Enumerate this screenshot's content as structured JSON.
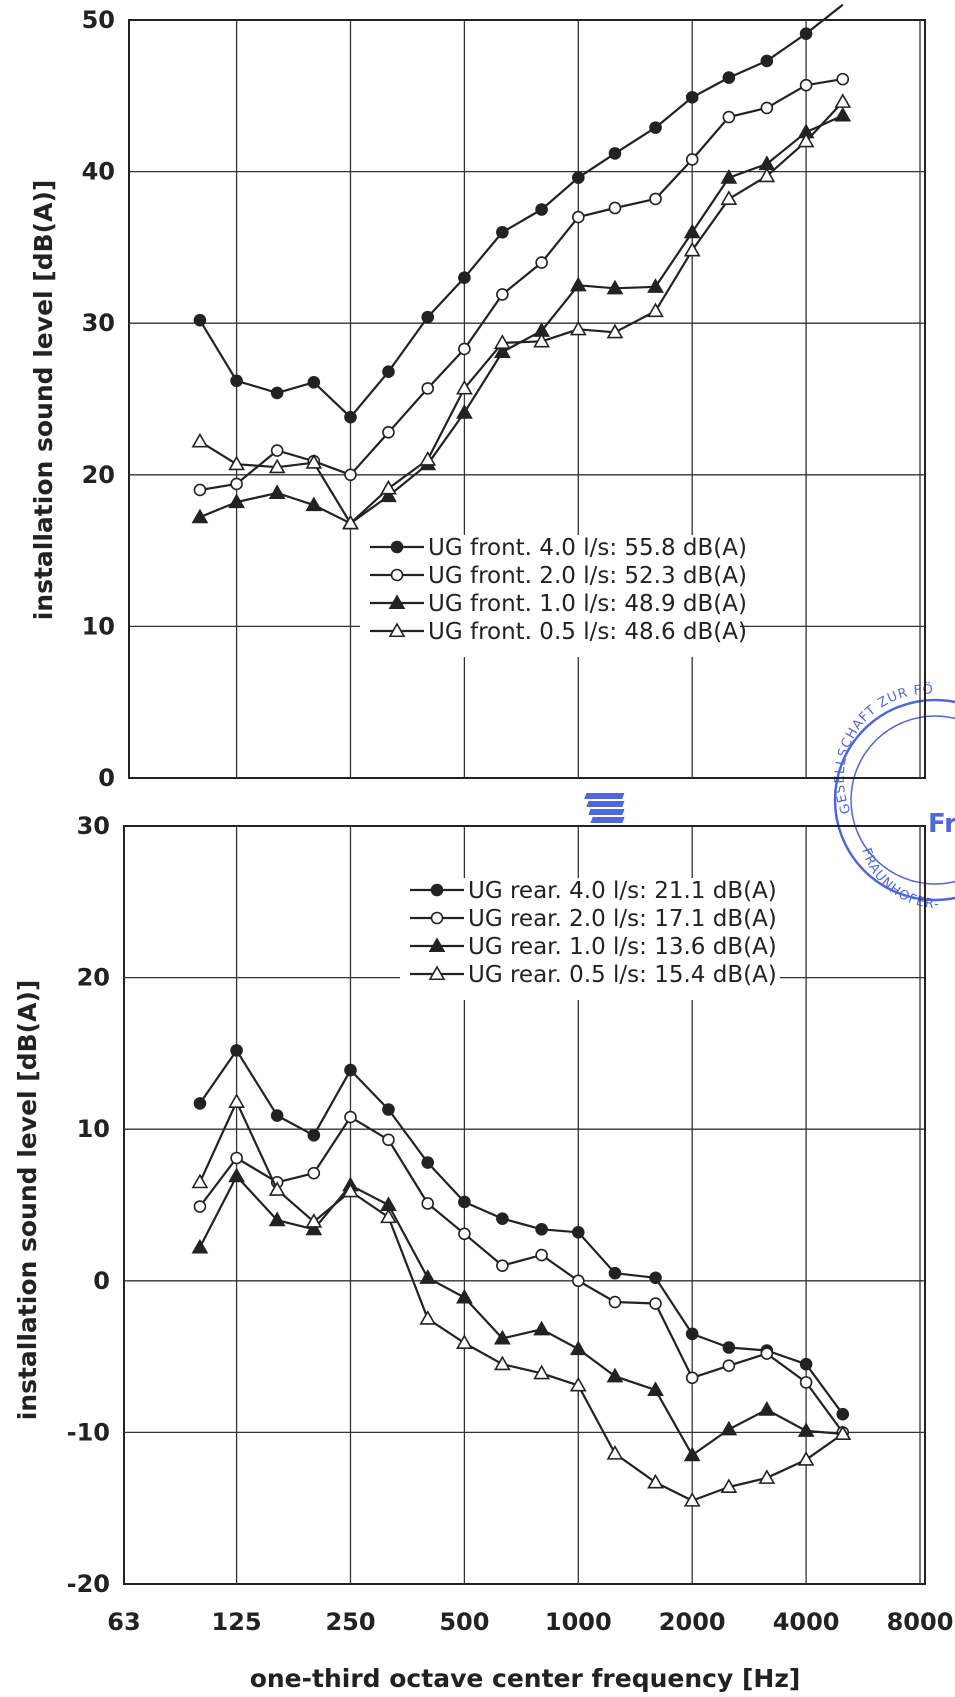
{
  "colors": {
    "ink": "#222222",
    "grid": "#333333",
    "stamp": "#3b55d8"
  },
  "x_axis": {
    "label": "one-third octave center frequency [Hz]",
    "ticks": [
      "63",
      "125",
      "250",
      "500",
      "1000",
      "2000",
      "4000",
      "8000"
    ]
  },
  "stamp": {
    "arc_text": "GESELLSCHAFT ZUR FÖ",
    "bottom_text": "FRAUNHOFER-",
    "logo_text": "Fr"
  },
  "chart_data": [
    {
      "type": "line",
      "ylabel": "installation sound level [dB(A)]",
      "ylim": [
        0,
        50
      ],
      "yticks": [
        "0",
        "10",
        "20",
        "30",
        "40",
        "50"
      ],
      "xlim": [
        63,
        8000
      ],
      "xscale": "log2",
      "x": [
        100,
        125,
        160,
        200,
        250,
        315,
        400,
        500,
        630,
        800,
        1000,
        1250,
        1600,
        2000,
        2500,
        3150,
        4000,
        5000
      ],
      "grid": true,
      "legend_position": "lower-right",
      "series": [
        {
          "name": "UG front. 4.0 l/s: 55.8 dB(A)",
          "marker": "filled-circle",
          "values": [
            30.2,
            26.2,
            25.4,
            26.1,
            23.8,
            26.8,
            30.4,
            33.0,
            36.0,
            37.5,
            39.6,
            41.2,
            42.9,
            44.9,
            46.2,
            47.3,
            49.1,
            51.0
          ]
        },
        {
          "name": "UG front. 2.0 l/s: 52.3 dB(A)",
          "marker": "open-circle",
          "values": [
            19.0,
            19.4,
            21.6,
            20.9,
            20.0,
            22.8,
            25.7,
            28.3,
            31.9,
            34.0,
            37.0,
            37.6,
            38.2,
            40.8,
            43.6,
            44.2,
            45.7,
            46.1
          ]
        },
        {
          "name": "UG front. 1.0 l/s: 48.9 dB(A)",
          "marker": "filled-triangle",
          "values": [
            17.2,
            18.2,
            18.8,
            18.0,
            16.8,
            18.6,
            20.7,
            24.1,
            28.1,
            29.5,
            32.5,
            32.3,
            32.4,
            36.0,
            39.6,
            40.5,
            42.6,
            43.7
          ]
        },
        {
          "name": "UG front. 0.5 l/s: 48.6 dB(A)",
          "marker": "open-triangle",
          "values": [
            22.2,
            20.7,
            20.5,
            20.8,
            16.8,
            19.1,
            21.0,
            25.7,
            28.7,
            28.8,
            29.6,
            29.4,
            30.8,
            34.8,
            38.2,
            39.7,
            42.0,
            44.6
          ]
        }
      ]
    },
    {
      "type": "line",
      "ylabel": "installation sound level [dB(A)]",
      "ylim": [
        -20,
        30
      ],
      "yticks": [
        "-20",
        "-10",
        "0",
        "10",
        "20",
        "30"
      ],
      "xlim": [
        63,
        8000
      ],
      "xscale": "log2",
      "x": [
        100,
        125,
        160,
        200,
        250,
        315,
        400,
        500,
        630,
        800,
        1000,
        1250,
        1600,
        2000,
        2500,
        3150,
        4000,
        5000
      ],
      "grid": true,
      "legend_position": "upper-right",
      "series": [
        {
          "name": "UG rear. 4.0 l/s: 21.1 dB(A)",
          "marker": "filled-circle",
          "values": [
            11.7,
            15.2,
            10.9,
            9.6,
            13.9,
            11.3,
            7.8,
            5.2,
            4.1,
            3.4,
            3.2,
            0.5,
            0.2,
            -3.5,
            -4.4,
            -4.6,
            -5.5,
            -8.8
          ]
        },
        {
          "name": "UG rear. 2.0 l/s: 17.1 dB(A)",
          "marker": "open-circle",
          "values": [
            4.9,
            8.1,
            6.5,
            7.1,
            10.8,
            9.3,
            5.1,
            3.1,
            1.0,
            1.7,
            0.0,
            -1.4,
            -1.5,
            -6.4,
            -5.6,
            -4.8,
            -6.7,
            -10.0
          ]
        },
        {
          "name": "UG rear. 1.0 l/s: 13.6 dB(A)",
          "marker": "filled-triangle",
          "values": [
            2.2,
            6.9,
            4.0,
            3.4,
            6.3,
            5.0,
            0.2,
            -1.1,
            -3.8,
            -3.2,
            -4.5,
            -6.3,
            -7.2,
            -11.5,
            -9.8,
            -8.5,
            -9.9,
            -10.1
          ]
        },
        {
          "name": "UG rear. 0.5 l/s: 15.4 dB(A)",
          "marker": "open-triangle",
          "values": [
            6.5,
            11.8,
            6.0,
            3.9,
            5.9,
            4.2,
            -2.5,
            -4.1,
            -5.5,
            -6.1,
            -6.9,
            -11.4,
            -13.3,
            -14.5,
            -13.6,
            -13.0,
            -11.8,
            -10.1
          ]
        }
      ]
    }
  ]
}
